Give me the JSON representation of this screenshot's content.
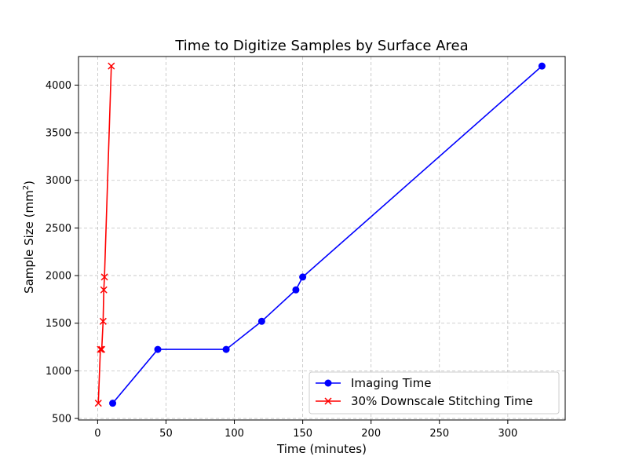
{
  "chart_data": {
    "type": "line",
    "title": "Time to Digitize Samples by Surface Area",
    "xlabel": "Time (minutes)",
    "ylabel_prefix": "Sample Size (mm",
    "ylabel_sup": "2",
    "ylabel_suffix": ")",
    "xlim": [
      -14,
      342
    ],
    "ylim": [
      484,
      4300
    ],
    "xticks": [
      0,
      50,
      100,
      150,
      200,
      250,
      300
    ],
    "yticks": [
      500,
      1000,
      1500,
      2000,
      2500,
      3000,
      3500,
      4000
    ],
    "grid": true,
    "legend_position": "lower-right",
    "series": [
      {
        "name": "Imaging Time",
        "color": "#0000ff",
        "marker": "circle",
        "points": [
          {
            "x": 11,
            "y": 660
          },
          {
            "x": 44,
            "y": 1225
          },
          {
            "x": 94,
            "y": 1225
          },
          {
            "x": 120,
            "y": 1520
          },
          {
            "x": 145,
            "y": 1850
          },
          {
            "x": 150,
            "y": 1985
          },
          {
            "x": 325,
            "y": 4200
          }
        ]
      },
      {
        "name": "30% Downscale Stitching Time",
        "color": "#ff0000",
        "marker": "x",
        "points": [
          {
            "x": 0.5,
            "y": 660
          },
          {
            "x": 2,
            "y": 1225
          },
          {
            "x": 3,
            "y": 1225
          },
          {
            "x": 4,
            "y": 1520
          },
          {
            "x": 4.5,
            "y": 1850
          },
          {
            "x": 5,
            "y": 1985
          },
          {
            "x": 10,
            "y": 4200
          }
        ]
      }
    ]
  }
}
